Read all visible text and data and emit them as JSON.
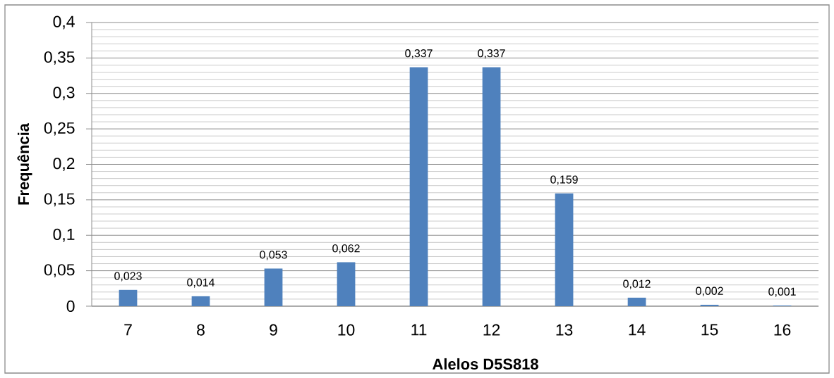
{
  "chart_data": {
    "type": "bar",
    "xlabel": "Alelos D5S818",
    "ylabel": "Frequência",
    "categories": [
      "7",
      "8",
      "9",
      "10",
      "11",
      "12",
      "13",
      "14",
      "15",
      "16"
    ],
    "values": [
      0.023,
      0.014,
      0.053,
      0.062,
      0.337,
      0.337,
      0.159,
      0.012,
      0.002,
      0.001
    ],
    "value_labels": [
      "0,023",
      "0,014",
      "0,053",
      "0,062",
      "0,337",
      "0,337",
      "0,159",
      "0,012",
      "0,002",
      "0,001"
    ],
    "color": "#4f81bd",
    "ylim": [
      0,
      0.4
    ],
    "yticks": [
      0,
      {
        "value": 0.01,
        "label": null
      },
      {
        "value": 0.02,
        "label": null
      },
      {
        "value": 0.03,
        "label": null
      },
      {
        "value": 0.04,
        "label": null
      },
      {
        "value": 0.05,
        "label": "0,05"
      },
      {
        "value": 0.06,
        "label": null
      },
      {
        "value": 0.07,
        "label": null
      },
      {
        "value": 0.08,
        "label": null
      },
      {
        "value": 0.09,
        "label": null
      },
      {
        "value": 0.1,
        "label": "0,1"
      },
      {
        "value": 0.11,
        "label": null
      },
      {
        "value": 0.12,
        "label": null
      },
      {
        "value": 0.13,
        "label": null
      },
      {
        "value": 0.14,
        "label": null
      },
      {
        "value": 0.15,
        "label": "0,15"
      },
      {
        "value": 0.16,
        "label": null
      },
      {
        "value": 0.17,
        "label": null
      },
      {
        "value": 0.18,
        "label": null
      },
      {
        "value": 0.19,
        "label": null
      },
      {
        "value": 0.2,
        "label": "0,2"
      },
      {
        "value": 0.21,
        "label": null
      },
      {
        "value": 0.22,
        "label": null
      },
      {
        "value": 0.23,
        "label": null
      },
      {
        "value": 0.24,
        "label": null
      },
      {
        "value": 0.25,
        "label": "0,25"
      },
      {
        "value": 0.26,
        "label": null
      },
      {
        "value": 0.27,
        "label": null
      },
      {
        "value": 0.28,
        "label": null
      },
      {
        "value": 0.29,
        "label": null
      },
      {
        "value": 0.3,
        "label": "0,3"
      },
      {
        "value": 0.31,
        "label": null
      },
      {
        "value": 0.32,
        "label": null
      },
      {
        "value": 0.33,
        "label": null
      },
      {
        "value": 0.34,
        "label": null
      },
      {
        "value": 0.35,
        "label": "0,35"
      },
      {
        "value": 0.36,
        "label": null
      },
      {
        "value": 0.37,
        "label": null
      },
      {
        "value": 0.38,
        "label": null
      },
      {
        "value": 0.39,
        "label": null
      },
      {
        "value": 0.4,
        "label": "0,4"
      }
    ],
    "grid": "y"
  }
}
